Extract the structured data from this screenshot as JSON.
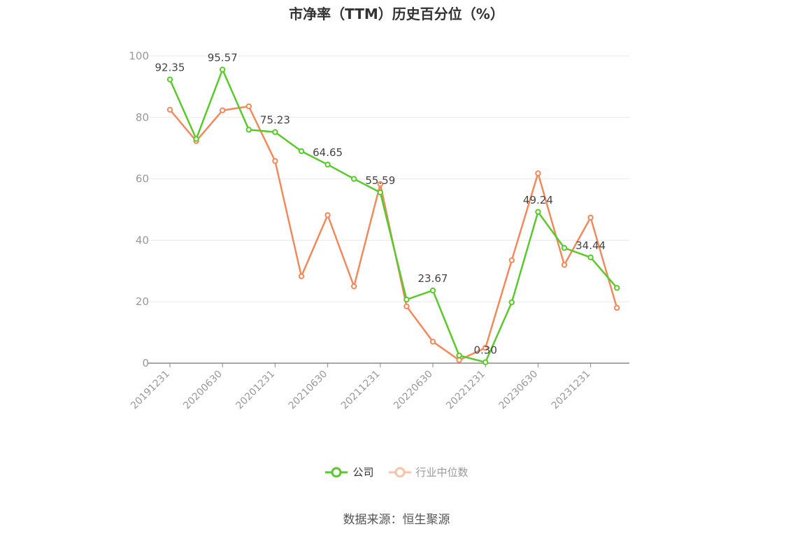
{
  "title": "市净率（TTM）历史百分位（%）",
  "source": "数据来源：恒生聚源",
  "colors": {
    "company": "#5ac92b",
    "industry": "#f2895c",
    "grid": "#e6e8f0",
    "axis": "#888888",
    "text": "#999999"
  },
  "chart_data": {
    "type": "line",
    "title": "市净率（TTM）历史百分位（%）",
    "xlabel": "",
    "ylabel": "",
    "ylim": [
      0,
      100
    ],
    "yticks": [
      0,
      20,
      40,
      60,
      80,
      100
    ],
    "grid": true,
    "legend_position": "bottom",
    "tick_labels": [
      "20191231",
      "20200630",
      "20201231",
      "20210630",
      "20211231",
      "20220630",
      "20221231",
      "20230630",
      "20231231"
    ],
    "x": [
      "20191231",
      "20200331",
      "20200630",
      "20200930",
      "20201231",
      "20210331",
      "20210630",
      "20210930",
      "20211231",
      "20220331",
      "20220630",
      "20220930",
      "20221231",
      "20230331",
      "20230630",
      "20230930",
      "20231231",
      "20240331"
    ],
    "series": [
      {
        "name": "公司",
        "color": "#5ac92b",
        "values": [
          92.35,
          73.0,
          95.57,
          76.0,
          75.23,
          69.0,
          64.65,
          60.0,
          55.59,
          20.7,
          23.67,
          2.5,
          0.3,
          19.8,
          49.24,
          37.5,
          34.44,
          24.5
        ],
        "labeled_indices": [
          0,
          2,
          4,
          6,
          8,
          10,
          12,
          14,
          16
        ]
      },
      {
        "name": "行业中位数",
        "color": "#f2895c",
        "values": [
          82.5,
          72.3,
          82.3,
          83.6,
          65.8,
          28.3,
          48.2,
          25.0,
          58.3,
          18.5,
          7.0,
          1.0,
          5.0,
          33.5,
          61.8,
          32.0,
          47.4,
          18.0
        ]
      }
    ]
  }
}
